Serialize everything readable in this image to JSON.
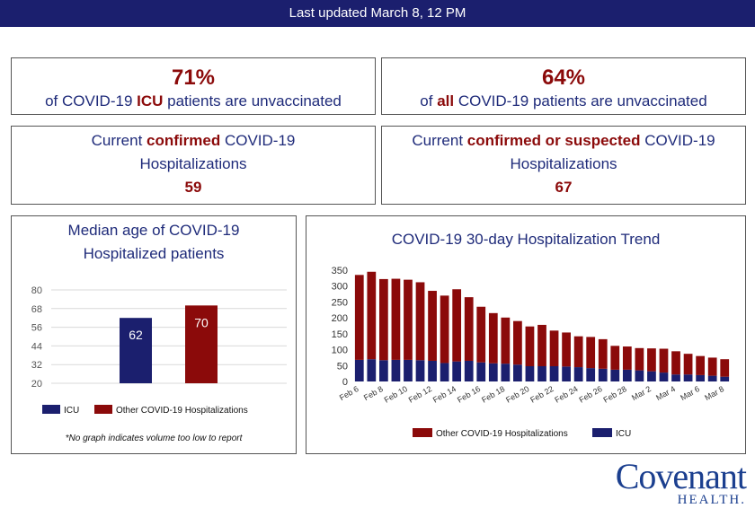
{
  "header": {
    "updated": "Last updated March 8, 12 PM"
  },
  "stats": {
    "icu": {
      "pct": "71%",
      "pre": "of COVID-19 ",
      "em": "ICU",
      "post": " patients are unvaccinated"
    },
    "all": {
      "pct": "64%",
      "pre": "of ",
      "em": "all",
      "post": " COVID-19 patients are unvaccinated"
    }
  },
  "hosp": {
    "confirmed": {
      "pre": "Current ",
      "em": "confirmed",
      "post": " COVID-19",
      "line2": "Hospitalizations",
      "value": "59"
    },
    "suspected": {
      "pre": "Current ",
      "em": "confirmed or suspected",
      "post": " COVID-19",
      "line2": "Hospitalizations",
      "value": "67"
    }
  },
  "age_chart": {
    "title1": "Median age of COVID-19",
    "title2": "Hospitalized patients",
    "note": "*No graph indicates volume too low to report"
  },
  "trend_chart": {
    "title": "COVID-19 30-day Hospitalization Trend"
  },
  "logo": {
    "main": "Covenant",
    "sub": "HEALTH."
  },
  "colors": {
    "navy": "#1b1f6e",
    "maroon": "#8b0a0a",
    "text": "#1f2b7a"
  },
  "chart_data": [
    {
      "type": "bar",
      "categories": [
        ""
      ],
      "series": [
        {
          "name": "ICU",
          "values": [
            62
          ],
          "color": "#1b1f6e"
        },
        {
          "name": "Other COVID-19 Hospitalizations",
          "values": [
            70
          ],
          "color": "#8b0a0a"
        }
      ],
      "ylim": [
        20,
        80
      ],
      "yticks": [
        20,
        32,
        44,
        56,
        68,
        80
      ],
      "grid": true,
      "legend": "bottom"
    },
    {
      "type": "bar",
      "stacked": true,
      "categories": [
        "Feb 6",
        "Feb 7",
        "Feb 8",
        "Feb 9",
        "Feb 10",
        "Feb 11",
        "Feb 12",
        "Feb 13",
        "Feb 14",
        "Feb 15",
        "Feb 16",
        "Feb 17",
        "Feb 18",
        "Feb 19",
        "Feb 20",
        "Feb 21",
        "Feb 22",
        "Feb 23",
        "Feb 24",
        "Feb 25",
        "Feb 26",
        "Feb 27",
        "Feb 28",
        "Mar 1",
        "Mar 2",
        "Mar 3",
        "Mar 4",
        "Mar 5",
        "Mar 6",
        "Mar 7",
        "Mar 8"
      ],
      "tick_labels": [
        "Feb 6",
        "Feb 8",
        "Feb 10",
        "Feb 12",
        "Feb 14",
        "Feb 16",
        "Feb 18",
        "Feb 20",
        "Feb 22",
        "Feb 24",
        "Feb 26",
        "Feb 28",
        "Mar 2",
        "Mar 4",
        "Mar 6",
        "Mar 8"
      ],
      "series": [
        {
          "name": "ICU",
          "color": "#1b1f6e",
          "values": [
            68,
            70,
            67,
            68,
            68,
            67,
            65,
            58,
            63,
            65,
            60,
            57,
            56,
            53,
            48,
            48,
            48,
            47,
            45,
            42,
            40,
            37,
            37,
            35,
            32,
            28,
            22,
            22,
            20,
            18,
            15
          ]
        },
        {
          "name": "Other COVID-19 Hospitalizations",
          "color": "#8b0a0a",
          "values": [
            267,
            275,
            255,
            255,
            252,
            245,
            220,
            212,
            227,
            200,
            175,
            158,
            145,
            137,
            125,
            130,
            112,
            107,
            97,
            98,
            93,
            75,
            73,
            70,
            72,
            75,
            73,
            65,
            60,
            57,
            55
          ]
        }
      ],
      "ylim": [
        0,
        350
      ],
      "yticks": [
        0,
        50,
        100,
        150,
        200,
        250,
        300,
        350
      ],
      "legend": "bottom"
    }
  ]
}
